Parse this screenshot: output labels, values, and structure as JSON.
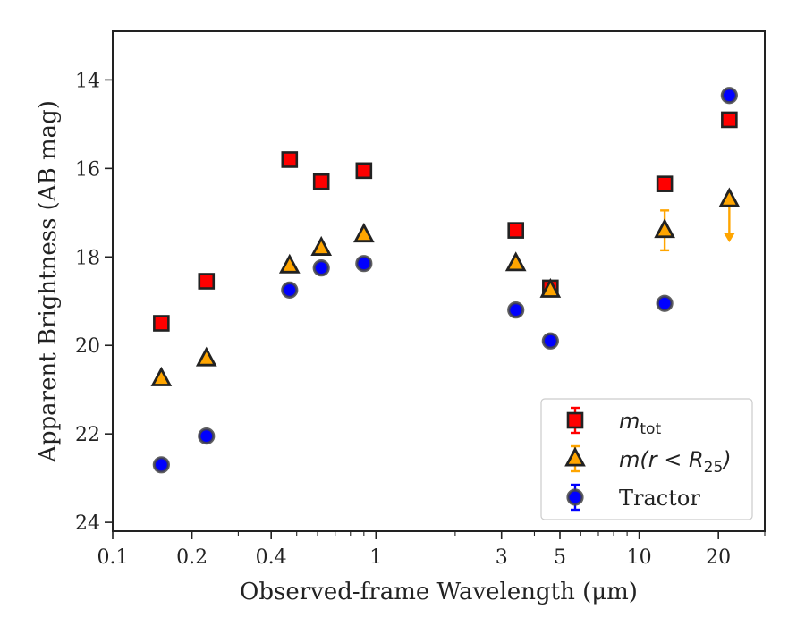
{
  "chart_data": {
    "type": "scatter",
    "xscale": "log",
    "yinverted": true,
    "xlim": [
      0.1,
      30
    ],
    "ylim": [
      24.2,
      12.9
    ],
    "xlabel": "Observed-frame Wavelength (μm)",
    "ylabel": "Apparent Brightness (AB mag)",
    "xticks": [
      {
        "value": 0.1,
        "label": "0.1"
      },
      {
        "value": 0.2,
        "label": "0.2"
      },
      {
        "value": 0.4,
        "label": "0.4"
      },
      {
        "value": 1,
        "label": "1"
      },
      {
        "value": 3,
        "label": "3"
      },
      {
        "value": 5,
        "label": "5"
      },
      {
        "value": 10,
        "label": "10"
      },
      {
        "value": 20,
        "label": "20"
      }
    ],
    "yticks": [
      {
        "value": 14,
        "label": "14"
      },
      {
        "value": 16,
        "label": "16"
      },
      {
        "value": 18,
        "label": "18"
      },
      {
        "value": 20,
        "label": "20"
      },
      {
        "value": 22,
        "label": "22"
      },
      {
        "value": 24,
        "label": "24"
      }
    ],
    "series": [
      {
        "name_main": "m",
        "name_sub": "tot",
        "marker": "square",
        "color": "#ff0000",
        "errcolor": "#ff0000",
        "x": [
          0.153,
          0.227,
          0.47,
          0.62,
          0.9,
          3.4,
          4.6,
          12.5,
          22.0
        ],
        "y": [
          19.5,
          18.55,
          15.8,
          16.3,
          16.05,
          17.4,
          18.7,
          16.35,
          14.9
        ]
      },
      {
        "name_main": "m(r < R",
        "name_sub": "25",
        "name_tail": ")",
        "marker": "triangle",
        "color": "#ffa500",
        "errcolor": "#ffa500",
        "x": [
          0.153,
          0.227,
          0.47,
          0.62,
          0.9,
          3.4,
          4.6,
          12.5,
          22.0
        ],
        "y": [
          20.75,
          20.3,
          18.2,
          17.8,
          17.5,
          18.15,
          18.75,
          17.4,
          16.7
        ],
        "yerr": [
          0,
          0,
          0,
          0,
          0,
          0,
          0,
          0.45,
          0
        ],
        "upper_limit": [
          false,
          false,
          false,
          false,
          false,
          false,
          false,
          false,
          true
        ]
      },
      {
        "name": "Tractor",
        "marker": "circle",
        "color": "#0000ff",
        "errcolor": "#0000ff",
        "x": [
          0.153,
          0.227,
          0.47,
          0.62,
          0.9,
          3.4,
          4.6,
          12.5,
          22.0
        ],
        "y": [
          22.7,
          22.05,
          18.75,
          18.25,
          18.15,
          19.2,
          19.9,
          19.05,
          14.35
        ]
      }
    ],
    "legend": "lower-right",
    "grid": false
  }
}
